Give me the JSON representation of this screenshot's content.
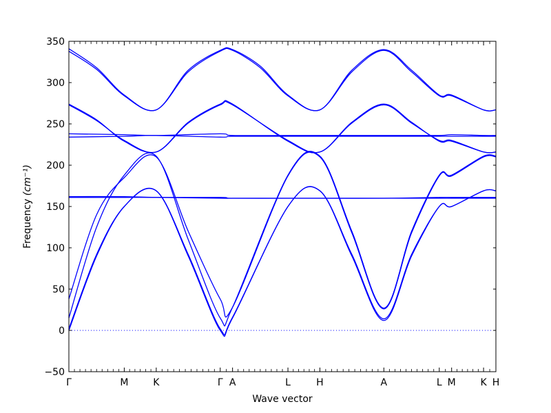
{
  "chart_data": {
    "type": "line",
    "title": "",
    "xlabel": "Wave vector",
    "ylabel": "Frequency",
    "ylabel_unit": "(cm⁻¹)",
    "ylim": [
      -50,
      350
    ],
    "yticks": [
      -50,
      0,
      50,
      100,
      150,
      200,
      250,
      300,
      350
    ],
    "grid": false,
    "line_color": "#0000ff",
    "zero_line": {
      "y": 0,
      "style": "dotted"
    },
    "x_high_symmetry": [
      {
        "label": "Γ",
        "x": 0.0
      },
      {
        "label": "M",
        "x": 0.1297
      },
      {
        "label": "K",
        "x": 0.2046
      },
      {
        "label": "Γ",
        "x": 0.3544
      },
      {
        "label": "A",
        "x": 0.3833
      },
      {
        "label": "L",
        "x": 0.513
      },
      {
        "label": "H",
        "x": 0.5878
      },
      {
        "label": "A",
        "x": 0.7376
      },
      {
        "label": "L",
        "x": 0.8674
      },
      {
        "label": "M",
        "x": 0.8963
      },
      {
        "label": "K",
        "x": 0.9711
      },
      {
        "label": "H",
        "x": 1.0
      }
    ],
    "series": [
      {
        "values": [
          [
            0.0,
            0
          ],
          [
            0.0649,
            90
          ],
          [
            0.1297,
            150
          ],
          [
            0.2046,
            169
          ],
          [
            0.2795,
            90
          ],
          [
            0.3544,
            0
          ],
          [
            0.3833,
            15
          ],
          [
            0.513,
            150
          ],
          [
            0.5878,
            169
          ],
          [
            0.6627,
            90
          ],
          [
            0.7376,
            12
          ],
          [
            0.8025,
            90
          ],
          [
            0.8674,
            150
          ],
          [
            0.8963,
            150
          ],
          [
            0.9711,
            169
          ],
          [
            1.0,
            169
          ]
        ]
      },
      {
        "values": [
          [
            0.0,
            2
          ],
          [
            0.0649,
            92
          ],
          [
            0.1297,
            150
          ],
          [
            0.2046,
            169
          ],
          [
            0.2795,
            92
          ],
          [
            0.3544,
            2
          ],
          [
            0.3833,
            16
          ],
          [
            0.513,
            150
          ],
          [
            0.5878,
            169
          ],
          [
            0.6627,
            92
          ],
          [
            0.7376,
            14
          ],
          [
            0.8025,
            92
          ],
          [
            0.8674,
            150
          ],
          [
            0.8963,
            150
          ],
          [
            0.9711,
            169
          ],
          [
            1.0,
            169
          ]
        ]
      },
      {
        "values": [
          [
            0.0,
            15
          ],
          [
            0.0649,
            125
          ],
          [
            0.1297,
            188
          ],
          [
            0.2046,
            211
          ],
          [
            0.2795,
            110
          ],
          [
            0.3544,
            15
          ],
          [
            0.3833,
            28
          ],
          [
            0.513,
            188
          ],
          [
            0.5878,
            211
          ],
          [
            0.6627,
            120
          ],
          [
            0.7376,
            27
          ],
          [
            0.8025,
            120
          ],
          [
            0.8674,
            188
          ],
          [
            0.8963,
            188
          ],
          [
            0.9711,
            211
          ],
          [
            1.0,
            211
          ]
        ]
      },
      {
        "values": [
          [
            0.0,
            38
          ],
          [
            0.0649,
            140
          ],
          [
            0.1297,
            185
          ],
          [
            0.2046,
            210
          ],
          [
            0.2795,
            120
          ],
          [
            0.3544,
            38
          ],
          [
            0.3833,
            28
          ],
          [
            0.513,
            187
          ],
          [
            0.5878,
            210
          ],
          [
            0.6627,
            118
          ],
          [
            0.7376,
            26
          ],
          [
            0.8025,
            118
          ],
          [
            0.8674,
            187
          ],
          [
            0.8963,
            187
          ],
          [
            0.9711,
            210
          ],
          [
            1.0,
            210
          ]
        ]
      },
      {
        "values": [
          [
            0.0,
            162
          ],
          [
            0.1297,
            162
          ],
          [
            0.2046,
            161
          ],
          [
            0.3544,
            161
          ],
          [
            0.3833,
            160
          ],
          [
            0.513,
            160
          ],
          [
            0.5878,
            160
          ],
          [
            0.7376,
            160
          ],
          [
            0.8674,
            161
          ],
          [
            0.8963,
            161
          ],
          [
            0.9711,
            161
          ],
          [
            1.0,
            161
          ]
        ]
      },
      {
        "values": [
          [
            0.0,
            161
          ],
          [
            0.1297,
            161
          ],
          [
            0.2046,
            161
          ],
          [
            0.3544,
            160
          ],
          [
            0.3833,
            160
          ],
          [
            0.513,
            160
          ],
          [
            0.5878,
            160
          ],
          [
            0.7376,
            160
          ],
          [
            0.8674,
            160
          ],
          [
            0.8963,
            160
          ],
          [
            0.9711,
            160
          ],
          [
            1.0,
            160
          ]
        ]
      },
      {
        "values": [
          [
            0.0,
            274
          ],
          [
            0.0649,
            255
          ],
          [
            0.1297,
            229
          ],
          [
            0.2046,
            216
          ],
          [
            0.2795,
            252
          ],
          [
            0.3544,
            274
          ],
          [
            0.3833,
            274
          ],
          [
            0.513,
            229
          ],
          [
            0.5878,
            216
          ],
          [
            0.6627,
            252
          ],
          [
            0.7376,
            274
          ],
          [
            0.8025,
            252
          ],
          [
            0.8674,
            229
          ],
          [
            0.8963,
            229
          ],
          [
            0.9711,
            216
          ],
          [
            1.0,
            216
          ]
        ]
      },
      {
        "values": [
          [
            0.0,
            273
          ],
          [
            0.0649,
            254
          ],
          [
            0.1297,
            230
          ],
          [
            0.2046,
            216
          ],
          [
            0.2795,
            251
          ],
          [
            0.3544,
            273
          ],
          [
            0.3833,
            273
          ],
          [
            0.513,
            230
          ],
          [
            0.5878,
            216
          ],
          [
            0.6627,
            251
          ],
          [
            0.7376,
            273
          ],
          [
            0.8025,
            251
          ],
          [
            0.8674,
            230
          ],
          [
            0.8963,
            230
          ],
          [
            0.9711,
            216
          ],
          [
            1.0,
            216
          ]
        ]
      },
      {
        "values": [
          [
            0.0,
            238
          ],
          [
            0.1297,
            237
          ],
          [
            0.2046,
            236
          ],
          [
            0.3544,
            238
          ],
          [
            0.3833,
            236
          ],
          [
            0.513,
            236
          ],
          [
            0.5878,
            236
          ],
          [
            0.7376,
            236
          ],
          [
            0.8674,
            236
          ],
          [
            0.8963,
            237
          ],
          [
            0.9711,
            236
          ],
          [
            1.0,
            236
          ]
        ]
      },
      {
        "values": [
          [
            0.0,
            234
          ],
          [
            0.1297,
            235
          ],
          [
            0.2046,
            236
          ],
          [
            0.3544,
            234
          ],
          [
            0.3833,
            235
          ],
          [
            0.513,
            235
          ],
          [
            0.5878,
            235
          ],
          [
            0.7376,
            235
          ],
          [
            0.8674,
            235
          ],
          [
            0.8963,
            235
          ],
          [
            0.9711,
            235
          ],
          [
            1.0,
            235
          ]
        ]
      },
      {
        "values": [
          [
            0.0,
            341
          ],
          [
            0.0649,
            318
          ],
          [
            0.1297,
            285
          ],
          [
            0.2046,
            267
          ],
          [
            0.2795,
            315
          ],
          [
            0.3544,
            339
          ],
          [
            0.3833,
            340
          ],
          [
            0.4482,
            320
          ],
          [
            0.513,
            285
          ],
          [
            0.5878,
            267
          ],
          [
            0.6627,
            315
          ],
          [
            0.7376,
            340
          ],
          [
            0.8025,
            315
          ],
          [
            0.8674,
            285
          ],
          [
            0.8963,
            285
          ],
          [
            0.9711,
            267
          ],
          [
            1.0,
            267
          ]
        ]
      },
      {
        "values": [
          [
            0.0,
            338
          ],
          [
            0.0649,
            316
          ],
          [
            0.1297,
            284
          ],
          [
            0.2046,
            267
          ],
          [
            0.2795,
            313
          ],
          [
            0.3544,
            338
          ],
          [
            0.3833,
            339
          ],
          [
            0.4482,
            318
          ],
          [
            0.513,
            284
          ],
          [
            0.5878,
            267
          ],
          [
            0.6627,
            313
          ],
          [
            0.7376,
            339
          ],
          [
            0.8025,
            313
          ],
          [
            0.8674,
            284
          ],
          [
            0.8963,
            284
          ],
          [
            0.9711,
            267
          ],
          [
            1.0,
            267
          ]
        ]
      }
    ]
  }
}
